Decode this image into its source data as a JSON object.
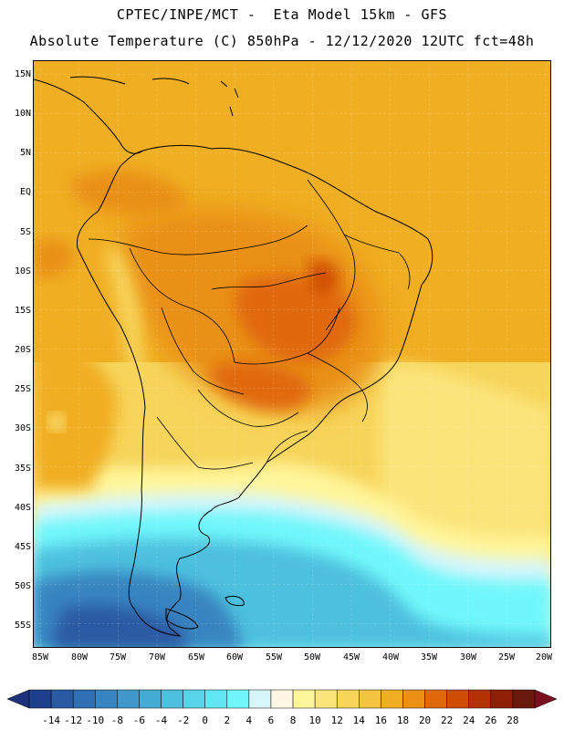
{
  "header": {
    "line1": "CPTEC/INPE/MCT -  Eta Model 15km - GFS",
    "line2": "Absolute Temperature (C) 850hPa - 12/12/2020 12UTC fct=48h"
  },
  "map": {
    "lat_labels": [
      "15N",
      "10N",
      "5N",
      "EQ",
      "5S",
      "10S",
      "15S",
      "20S",
      "25S",
      "30S",
      "35S",
      "40S",
      "45S",
      "50S",
      "55S"
    ],
    "lon_labels": [
      "85W",
      "80W",
      "75W",
      "70W",
      "65W",
      "60W",
      "55W",
      "50W",
      "45W",
      "40W",
      "35W",
      "30W",
      "25W",
      "20W"
    ],
    "gridlines": true,
    "temperature_regions": [
      {
        "region": "northern continent / Caribbean",
        "value_c": 18
      },
      {
        "region": "central Brazil / Mato Grosso",
        "value_c": 22
      },
      {
        "region": "Paraguay / southern Brazil",
        "value_c": 22
      },
      {
        "region": "Amazon basin",
        "value_c": 20
      },
      {
        "region": "tropical Atlantic",
        "value_c": 18
      },
      {
        "region": "South Atlantic 25S-35S",
        "value_c": 14
      },
      {
        "region": "Patagonia / 45S-55S ocean",
        "value_c": 2
      },
      {
        "region": "southwest Pacific near 50S-55S",
        "value_c": -4
      }
    ]
  },
  "colorbar": {
    "labels": [
      "-14",
      "-12",
      "-10",
      "-8",
      "-6",
      "-4",
      "-2",
      "0",
      "2",
      "4",
      "6",
      "8",
      "10",
      "12",
      "14",
      "16",
      "18",
      "20",
      "22",
      "24",
      "26",
      "28"
    ],
    "colors": [
      "#1e3f8c",
      "#2a5aa3",
      "#2f6fb3",
      "#3884c0",
      "#3f98c9",
      "#44acd4",
      "#4dc0de",
      "#58d3e8",
      "#62e6f1",
      "#6ff7fb",
      "#d6f6fb",
      "#fff7e4",
      "#fff59a",
      "#fbe47a",
      "#f7d45a",
      "#f4c33f",
      "#f0ae22",
      "#e99015",
      "#e0690b",
      "#cf4d06",
      "#b23204",
      "#8f1f05",
      "#6a1a0c"
    ],
    "extend_low_color": "#1d327a",
    "extend_high_color": "#7a0f1f"
  }
}
